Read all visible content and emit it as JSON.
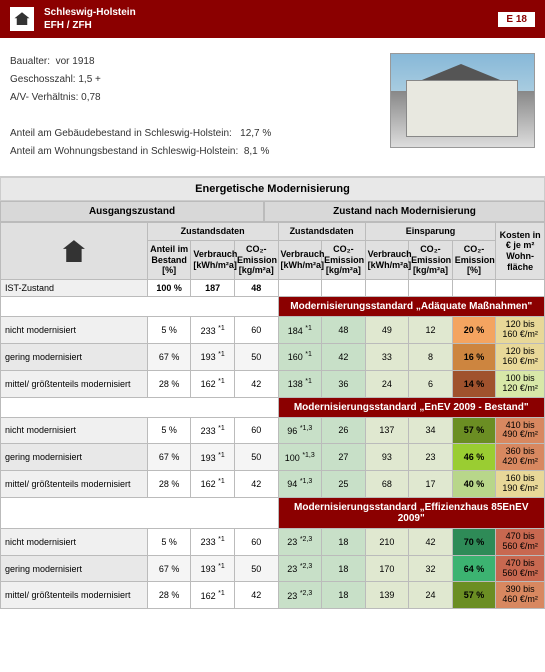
{
  "header": {
    "region": "Schleswig-Holstein",
    "type": "EFH / ZFH",
    "badge": "E 18"
  },
  "info": {
    "baualter_label": "Baualter:",
    "baualter": "vor 1918",
    "geschoss_label": "Geschosszahl:",
    "geschoss": "1,5 +",
    "av_label": "A/V- Verhältnis:",
    "av": "0,78",
    "anteil_geb_label": "Anteil am Gebäudebestand in Schleswig-Holstein:",
    "anteil_geb": "12,7 %",
    "anteil_wohn_label": "Anteil am Wohnungsbestand in Schleswig-Holstein:",
    "anteil_wohn": "8,1 %"
  },
  "titles": {
    "main": "Energetische Modernisierung",
    "ausgang": "Ausgangszustand",
    "zustand_mod": "Zustand nach Modernisierung",
    "zustandsdaten": "Zustandsdaten",
    "einsparung": "Einsparung",
    "kosten": "Kosten in € je m² Wohn-fläche"
  },
  "headers": {
    "anteil": "Anteil im Bestand [%]",
    "verbrauch": "Verbrauch [kWh/m²a]",
    "co2": "CO₂-Emission [kg/m²a]",
    "co2_pct": "CO₂-Emission [%]"
  },
  "row_labels": {
    "ist": "IST-Zustand",
    "nicht": "nicht modernisiert",
    "gering": "gering modernisiert",
    "mittel": "mittel/ größtenteils modernisiert"
  },
  "groups": [
    "Modernisierungsstandard „Adäquate Maßnahmen\"",
    "Modernisierungsstandard „EnEV 2009 - Bestand\"",
    "Modernisierungsstandard „Effizienzhaus 85EnEV 2009\""
  ],
  "ist": {
    "anteil": "100 %",
    "verbrauch": "187",
    "co2": "48"
  },
  "rows": [
    [
      {
        "label": "nicht",
        "anteil": "5 %",
        "verbrauch": "233",
        "vnote": "*1",
        "co2": "60",
        "v2": "184",
        "v2note": "*1",
        "c2": "48",
        "ev": "49",
        "ec": "12",
        "ep": "20 %",
        "epcol": "#f4a460",
        "k1": "120 bis",
        "k2": "160 €/m²",
        "kcol": "#e8d898"
      },
      {
        "label": "gering",
        "anteil": "67 %",
        "verbrauch": "193",
        "vnote": "*1",
        "co2": "50",
        "v2": "160",
        "v2note": "*1",
        "c2": "42",
        "ev": "33",
        "ec": "8",
        "ep": "16 %",
        "epcol": "#cd853f",
        "k1": "120 bis",
        "k2": "160 €/m²",
        "kcol": "#e8d898"
      },
      {
        "label": "mittel",
        "anteil": "28 %",
        "verbrauch": "162",
        "vnote": "*1",
        "co2": "42",
        "v2": "138",
        "v2note": "*1",
        "c2": "36",
        "ev": "24",
        "ec": "6",
        "ep": "14 %",
        "epcol": "#a0522d",
        "k1": "100 bis",
        "k2": "120 €/m²",
        "kcol": "#d8e8a8"
      }
    ],
    [
      {
        "label": "nicht",
        "anteil": "5 %",
        "verbrauch": "233",
        "vnote": "*1",
        "co2": "60",
        "v2": "96",
        "v2note": "*1,3",
        "c2": "26",
        "ev": "137",
        "ec": "34",
        "ep": "57 %",
        "epcol": "#6b8e23",
        "k1": "410 bis",
        "k2": "490 €/m²",
        "kcol": "#d88860"
      },
      {
        "label": "gering",
        "anteil": "67 %",
        "verbrauch": "193",
        "vnote": "*1",
        "co2": "50",
        "v2": "100",
        "v2note": "*1,3",
        "c2": "27",
        "ev": "93",
        "ec": "23",
        "ep": "46 %",
        "epcol": "#9acd32",
        "k1": "360 bis",
        "k2": "420 €/m²",
        "kcol": "#d88860"
      },
      {
        "label": "mittel",
        "anteil": "28 %",
        "verbrauch": "162",
        "vnote": "*1",
        "co2": "42",
        "v2": "94",
        "v2note": "*1,3",
        "c2": "25",
        "ev": "68",
        "ec": "17",
        "ep": "40 %",
        "epcol": "#b8d68a",
        "k1": "160 bis",
        "k2": "190 €/m²",
        "kcol": "#e8d898"
      }
    ],
    [
      {
        "label": "nicht",
        "anteil": "5 %",
        "verbrauch": "233",
        "vnote": "*1",
        "co2": "60",
        "v2": "23",
        "v2note": "*2,3",
        "c2": "18",
        "ev": "210",
        "ec": "42",
        "ep": "70 %",
        "epcol": "#2e8b57",
        "k1": "470 bis",
        "k2": "560 €/m²",
        "kcol": "#c86850"
      },
      {
        "label": "gering",
        "anteil": "67 %",
        "verbrauch": "193",
        "vnote": "*1",
        "co2": "50",
        "v2": "23",
        "v2note": "*2,3",
        "c2": "18",
        "ev": "170",
        "ec": "32",
        "ep": "64 %",
        "epcol": "#3cb371",
        "k1": "470 bis",
        "k2": "560 €/m²",
        "kcol": "#c86850"
      },
      {
        "label": "mittel",
        "anteil": "28 %",
        "verbrauch": "162",
        "vnote": "*1",
        "co2": "42",
        "v2": "23",
        "v2note": "*2,3",
        "c2": "18",
        "ev": "139",
        "ec": "24",
        "ep": "57 %",
        "epcol": "#6b8e23",
        "k1": "390 bis",
        "k2": "460 €/m²",
        "kcol": "#d88860"
      }
    ]
  ]
}
